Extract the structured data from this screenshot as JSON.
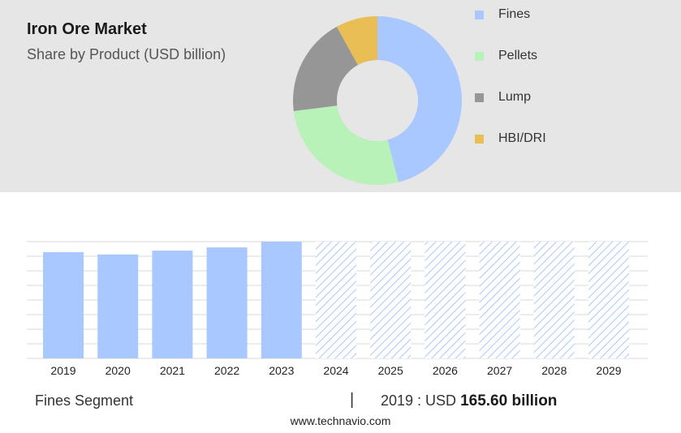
{
  "header": {
    "title": "Iron Ore Market",
    "subtitle": "Share by Product (USD billion)"
  },
  "chart_data": [
    {
      "type": "pie",
      "subtype": "donut",
      "categories": [
        "Fines",
        "Pellets",
        "Lump",
        "HBI/DRI"
      ],
      "values": [
        46,
        27,
        19,
        8
      ],
      "colors": [
        "#a9c8ff",
        "#b9f2b9",
        "#969696",
        "#e8be55"
      ],
      "legend": "right"
    },
    {
      "type": "bar",
      "categories": [
        "2019",
        "2020",
        "2021",
        "2022",
        "2023",
        "2024",
        "2025",
        "2026",
        "2027",
        "2028",
        "2029"
      ],
      "values": [
        165.6,
        162,
        168,
        173,
        182,
        null,
        null,
        null,
        null,
        null,
        null
      ],
      "forecast_from": "2024",
      "color": "#a9c8ff",
      "grid": true
    }
  ],
  "footer": {
    "segment": "Fines Segment",
    "separator": "|",
    "year_label": "2019 : USD",
    "value": "165.60 billion",
    "source": "www.technavio.com"
  }
}
